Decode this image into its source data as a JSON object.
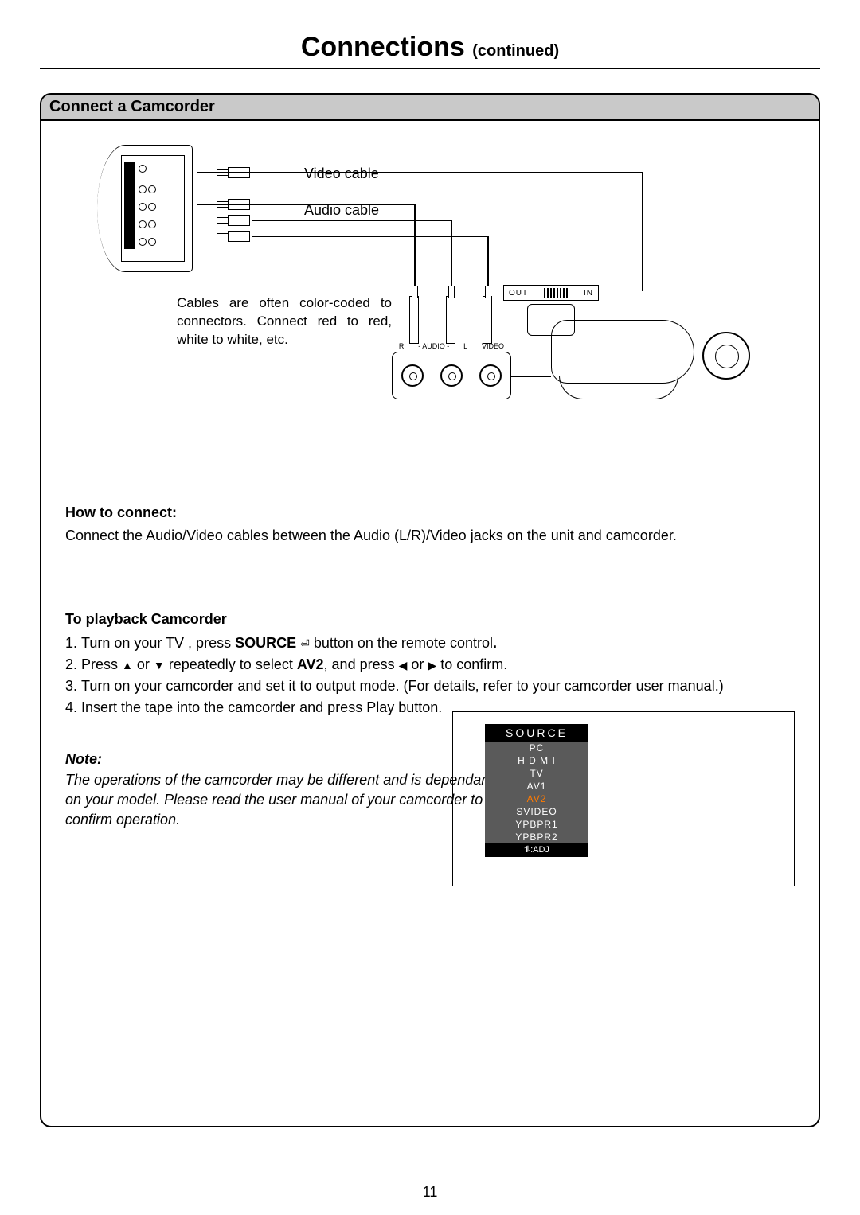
{
  "page": {
    "title": "Connections",
    "subtitle": "(continued)",
    "number": "11"
  },
  "section": {
    "header": "Connect a Camcorder"
  },
  "diagram": {
    "video_label": "Video cable",
    "audio_label": "Audio cable",
    "tip": "Cables are often color-coded to connectors. Connect red to red, white to white, etc.",
    "jack_r": "R",
    "jack_audio": "- AUDIO -",
    "jack_l": "L",
    "jack_video": "VIDEO",
    "out": "OUT",
    "in": "IN"
  },
  "howto": {
    "title": "How to connect:",
    "text": "Connect the Audio/Video cables between the Audio (L/R)/Video jacks on the unit and camcorder."
  },
  "playback": {
    "title": "To playback Camcorder",
    "step1a": "Turn on your TV , press ",
    "step1b": "SOURCE",
    "step1c": " button on the remote control",
    "step1d": ".",
    "step2a": "Press ",
    "step2b": " or ",
    "step2c": " repeatedly to select ",
    "step2d": "AV2",
    "step2e": ", and press ",
    "step2f": " or ",
    "step2g": "  to confirm.",
    "step3": "Turn on your camcorder and set it to output mode. (For details, refer to your camcorder user manual.)",
    "step4": "Insert the tape into the camcorder and press Play button."
  },
  "note": {
    "title": "Note:",
    "text": "The operations of the camcorder may be different and is dependant on your model. Please read the user manual of your camcorder to confirm operation."
  },
  "source_menu": {
    "header": "SOURCE",
    "items": [
      "PC",
      "H D M I",
      "TV",
      "AV1",
      "AV2",
      "SVIDEO",
      "YPBPR1",
      "YPBPR2"
    ],
    "selected_index": 4,
    "selected_color": "#ff7a00",
    "bg_color": "#5a5a5a",
    "footer": ":ADJ"
  }
}
